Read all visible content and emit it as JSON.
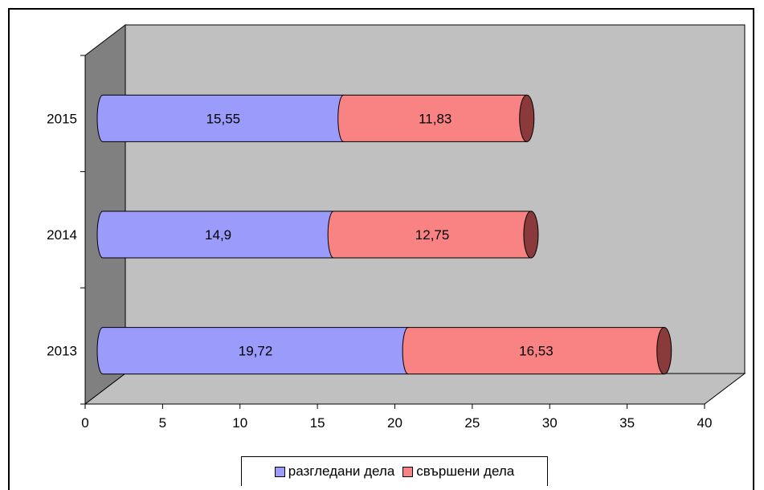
{
  "chart_data": {
    "type": "bar",
    "orientation": "horizontal",
    "stacked": true,
    "three_d": true,
    "categories": [
      "2013",
      "2014",
      "2015"
    ],
    "series": [
      {
        "name": "разгледани дела",
        "values": [
          19.72,
          14.9,
          15.55
        ],
        "labels": [
          "19,72",
          "14,9",
          "15,55"
        ],
        "color": "#9b9bfb"
      },
      {
        "name": "свършени дела",
        "values": [
          16.53,
          12.75,
          11.83
        ],
        "labels": [
          "16,53",
          "12,75",
          "11,83"
        ],
        "color": "#f98383"
      }
    ],
    "xlim": [
      0,
      40
    ],
    "xticks": [
      "0",
      "5",
      "10",
      "15",
      "20",
      "25",
      "30",
      "35",
      "40"
    ],
    "grid": false,
    "legend_position": "bottom",
    "wall_color": "#c0c0c0"
  }
}
